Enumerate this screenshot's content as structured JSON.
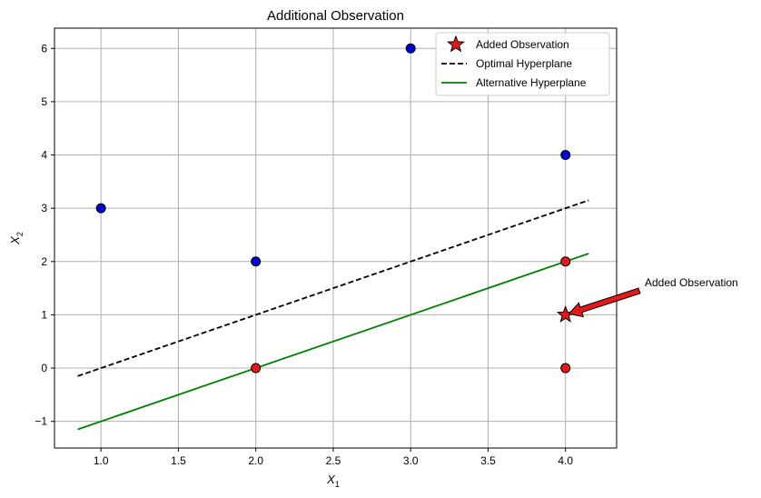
{
  "chart_data": {
    "type": "scatter",
    "title": "Additional Observation",
    "xlabel": "X",
    "xlabel_sub": "1",
    "ylabel": "X",
    "ylabel_sub": "2",
    "xlim": [
      0.7,
      4.33
    ],
    "ylim": [
      -1.5,
      6.38
    ],
    "xticks": [
      1.0,
      1.5,
      2.0,
      2.5,
      3.0,
      3.5,
      4.0
    ],
    "xtick_labels": [
      "1.0",
      "1.5",
      "2.0",
      "2.5",
      "3.0",
      "3.5",
      "4.0"
    ],
    "yticks": [
      -1,
      0,
      1,
      2,
      3,
      4,
      5,
      6
    ],
    "ytick_labels": [
      "−1",
      "0",
      "1",
      "2",
      "3",
      "4",
      "5",
      "6"
    ],
    "grid": true,
    "legend_position": "top-right",
    "series": [
      {
        "color": "#0000cc",
        "marker": "circle",
        "points": [
          [
            1,
            3
          ],
          [
            2,
            2
          ],
          [
            3,
            6
          ],
          [
            4,
            4
          ]
        ]
      },
      {
        "color": "#e31a1c",
        "marker": "circle",
        "points": [
          [
            2,
            0
          ],
          [
            4,
            2
          ],
          [
            4,
            0
          ]
        ]
      },
      {
        "name": "Added Observation",
        "color": "#e31a1c",
        "marker": "star",
        "points": [
          [
            4,
            1
          ]
        ]
      }
    ],
    "lines": [
      {
        "name": "Optimal Hyperplane",
        "color": "#000000",
        "style": "dashed",
        "x": [
          0.85,
          4.15
        ],
        "y": [
          -0.15,
          3.15
        ]
      },
      {
        "name": "Alternative Hyperplane",
        "color": "#008000",
        "style": "solid",
        "x": [
          0.85,
          4.15
        ],
        "y": [
          -1.15,
          2.15
        ]
      }
    ],
    "annotation": {
      "text": "Added Observation",
      "target": [
        4,
        1
      ],
      "arrow_color": "#e31a1c"
    },
    "legend": [
      {
        "label": "Added Observation",
        "kind": "star",
        "color": "#e31a1c"
      },
      {
        "label": "Optimal Hyperplane",
        "kind": "dashed",
        "color": "#000000"
      },
      {
        "label": "Alternative Hyperplane",
        "kind": "solid",
        "color": "#008000"
      }
    ]
  }
}
